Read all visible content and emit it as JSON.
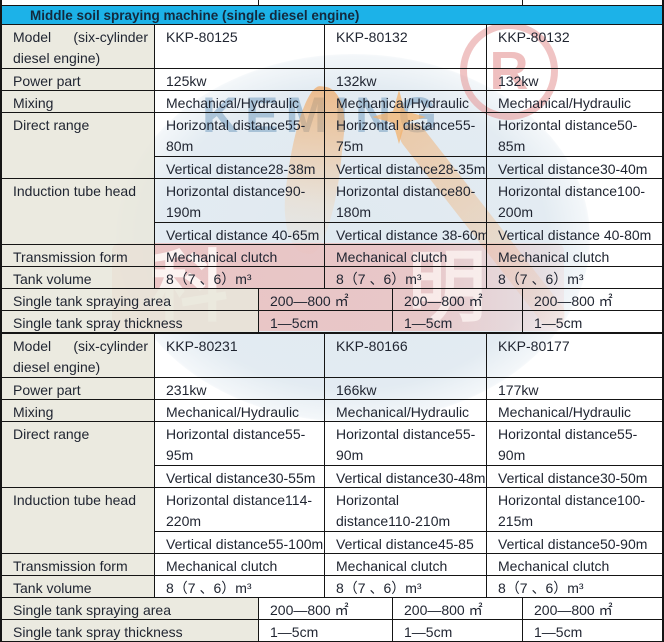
{
  "table": {
    "title": "Middle soil spraying machine (single diesel engine)",
    "blocks": [
      {
        "model_label": "Model (six-cylinder diesel engine)",
        "models": [
          "KKP-80125",
          "KKP-80132",
          "KKP-80132"
        ],
        "power_label": "Power part",
        "power": [
          "125kw",
          "132kw",
          "132kw"
        ],
        "mixing_label": "Mixing",
        "mixing": [
          "Mechanical/Hydraulic",
          "Mechanical/Hydraulic",
          "Mechanical/Hydraulic"
        ],
        "direct_label": "Direct range",
        "direct_horizontal": [
          "Horizontal distance55-80m",
          "Horizontal distance55-75m",
          "Horizontal distance50-85m"
        ],
        "direct_vertical": [
          "Vertical distance28-38m",
          "Vertical distance28-35m",
          "Vertical distance30-40m"
        ],
        "induction_label": "Induction tube head",
        "induction_horizontal": [
          "Horizontal distance90-190m",
          "Horizontal distance80-180m",
          "Horizontal distance100-200m"
        ],
        "induction_vertical": [
          "Vertical distance 40-65m",
          "Vertical distance 38-60m",
          "Vertical distance 40-80m"
        ],
        "transmission_label": "Transmission form",
        "transmission": [
          "Mechanical clutch",
          "Mechanical clutch",
          "Mechanical clutch"
        ],
        "tank_label": "Tank volume",
        "tank": [
          "8（7 、6）m³",
          "8（7 、6）m³",
          "8（7 、6）m³"
        ],
        "area_label": "Single tank spraying area",
        "area": [
          "200—800 ㎡",
          "200—800 ㎡",
          "200—800 ㎡"
        ],
        "thickness_label": "Single tank spray thickness",
        "thickness": [
          "1—5cm",
          "1—5cm",
          "1—5cm"
        ]
      },
      {
        "model_label": "Model (six-cylinder diesel engine)",
        "models": [
          "KKP-80231",
          "KKP-80166",
          "KKP-80177"
        ],
        "power_label": "Power part",
        "power": [
          "231kw",
          "166kw",
          "177kw"
        ],
        "mixing_label": "Mixing",
        "mixing": [
          "Mechanical/Hydraulic",
          "Mechanical/Hydraulic",
          "Mechanical/Hydraulic"
        ],
        "direct_label": "Direct range",
        "direct_horizontal": [
          "Horizontal distance55-95m",
          "Horizontal distance55-90m",
          "Horizontal distance55-90m"
        ],
        "direct_vertical": [
          "Vertical distance30-55m",
          "Vertical distance30-48m",
          "Vertical distance30-50m"
        ],
        "induction_label": "Induction tube head",
        "induction_horizontal": [
          "Horizontal distance114-220m",
          "Horizontal distance110-210m",
          "Horizontal distance100-215m"
        ],
        "induction_vertical": [
          "Vertical distance55-100m",
          "Vertical distance45-85",
          "Vertical distance50-90m"
        ],
        "transmission_label": "Transmission form",
        "transmission": [
          "Mechanical clutch",
          "Mechanical clutch",
          "Mechanical clutch"
        ],
        "tank_label": "Tank volume",
        "tank": [
          "8（7 、6）m³",
          "8（7 、6）m³",
          "8（7 、6）m³"
        ],
        "area_label": "Single tank spraying area",
        "area": [
          "200—800 ㎡",
          "200—800 ㎡",
          "200—800 ㎡"
        ],
        "thickness_label": "Single tank spray thickness",
        "thickness": [
          "1—5cm",
          "1—5cm",
          "1—5cm"
        ]
      }
    ]
  },
  "watermark": {
    "brand_text": "KEMING",
    "registered_mark": "R",
    "stamp_characters": [
      "科",
      "明"
    ]
  },
  "palette": {
    "header_cyan": "#1CB2E8",
    "label_beige": "#E8E6DB",
    "stamp_pink": "#F09E98",
    "brand_blue": "#6894BA",
    "logo_orange": "#F3AA64",
    "border_black": "#151515",
    "text_dark": "#1F2430"
  }
}
